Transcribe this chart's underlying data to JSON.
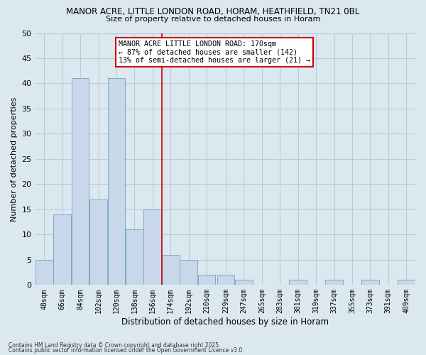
{
  "title": "MANOR ACRE, LITTLE LONDON ROAD, HORAM, HEATHFIELD, TN21 0BL",
  "subtitle": "Size of property relative to detached houses in Horam",
  "xlabel": "Distribution of detached houses by size in Horam",
  "ylabel": "Number of detached properties",
  "bin_labels": [
    "48sqm",
    "66sqm",
    "84sqm",
    "102sqm",
    "120sqm",
    "138sqm",
    "156sqm",
    "174sqm",
    "192sqm",
    "210sqm",
    "229sqm",
    "247sqm",
    "265sqm",
    "283sqm",
    "301sqm",
    "319sqm",
    "337sqm",
    "355sqm",
    "373sqm",
    "391sqm",
    "409sqm"
  ],
  "bin_edges": [
    48,
    66,
    84,
    102,
    120,
    138,
    156,
    174,
    192,
    210,
    229,
    247,
    265,
    283,
    301,
    319,
    337,
    355,
    373,
    391,
    409
  ],
  "counts": [
    5,
    14,
    41,
    17,
    41,
    11,
    15,
    6,
    5,
    2,
    2,
    1,
    0,
    0,
    1,
    0,
    1,
    0,
    1,
    0,
    1
  ],
  "bar_color": "#c8d8ea",
  "bar_edge_color": "#7aaac8",
  "vline_x": 174,
  "vline_color": "#cc0000",
  "ylim": [
    0,
    50
  ],
  "yticks": [
    0,
    5,
    10,
    15,
    20,
    25,
    30,
    35,
    40,
    45,
    50
  ],
  "annotation_title": "MANOR ACRE LITTLE LONDON ROAD: 170sqm",
  "annotation_line1": "← 87% of detached houses are smaller (142)",
  "annotation_line2": "13% of semi-detached houses are larger (21) →",
  "annotation_box_color": "#ffffff",
  "annotation_box_edge": "#cc0000",
  "background_color": "#dce8f0",
  "grid_color": "#b8ccd8",
  "footer1": "Contains HM Land Registry data © Crown copyright and database right 2025.",
  "footer2": "Contains public sector information licensed under the Open Government Licence v3.0."
}
